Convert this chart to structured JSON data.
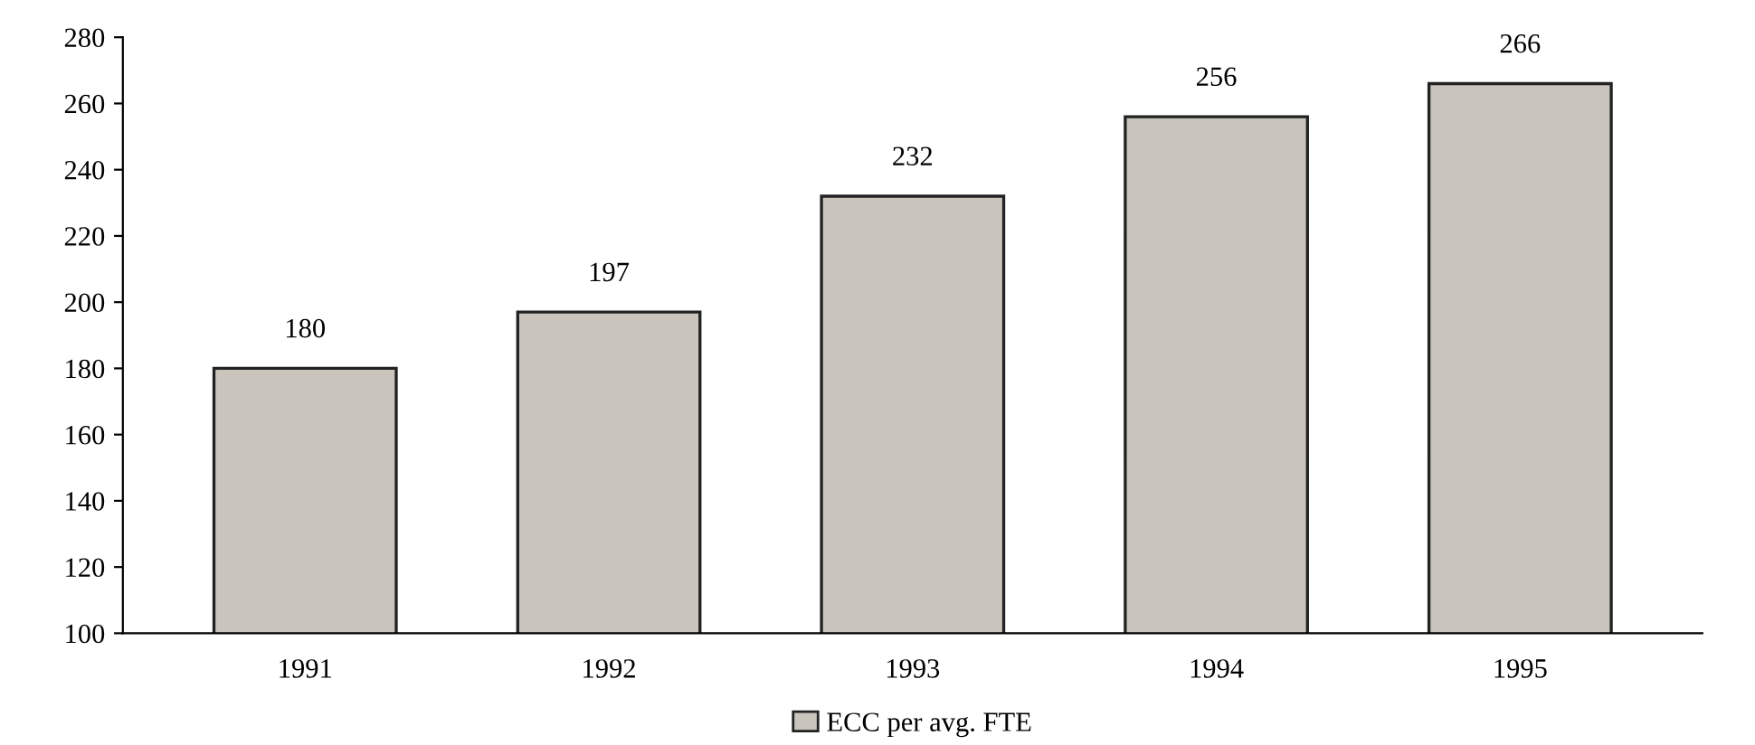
{
  "chart_data": {
    "type": "bar",
    "categories": [
      "1991",
      "1992",
      "1993",
      "1994",
      "1995"
    ],
    "series": [
      {
        "name": "ECC per avg. FTE",
        "color": "#c9c5bd",
        "values": [
          180,
          197,
          232,
          256,
          266
        ]
      }
    ],
    "data_labels": true,
    "ylim": [
      100,
      280
    ],
    "yticks": [
      100,
      120,
      140,
      160,
      180,
      200,
      220,
      240,
      260,
      280
    ],
    "grid": false,
    "legend": "bottom"
  }
}
